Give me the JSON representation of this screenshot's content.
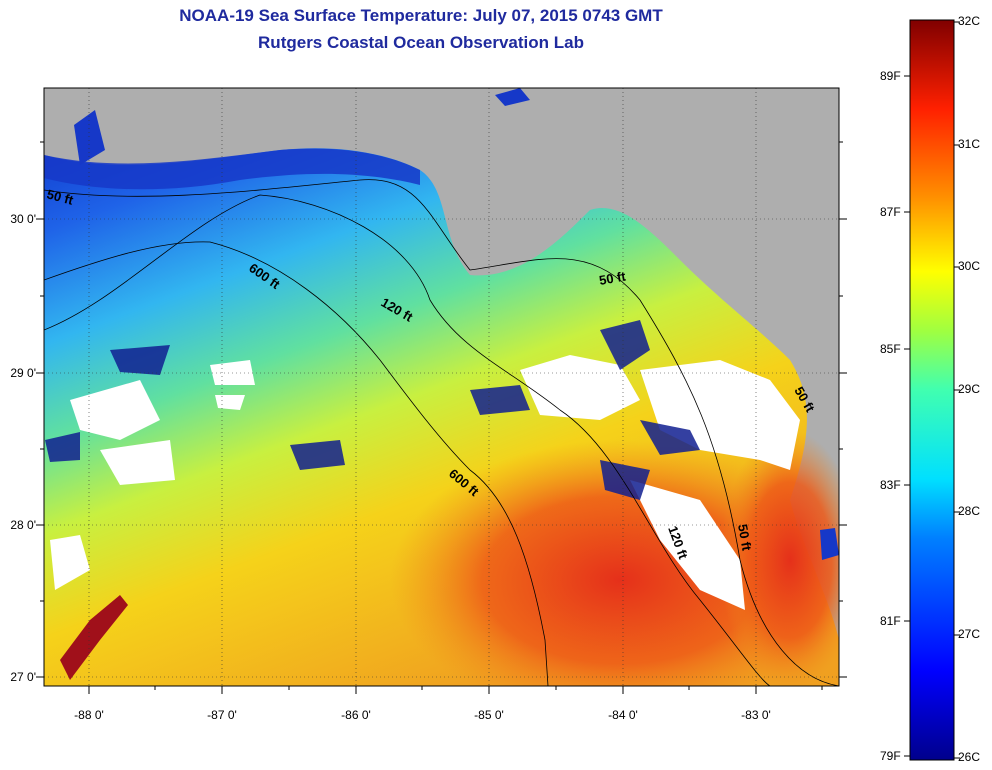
{
  "title": {
    "line1": "NOAA-19 Sea Surface Temperature:  July 07, 2015 0743 GMT",
    "line2": "Rutgers Coastal Ocean Observation Lab"
  },
  "latitude_labels": [
    "30 0'",
    "29 0'",
    "28 0'",
    "27 0'"
  ],
  "longitude_labels": [
    "-88 0'",
    "-87 0'",
    "-86 0'",
    "-85 0'",
    "-84 0'",
    "-83 0'"
  ],
  "contours": [
    "50 ft",
    "600 ft",
    "120 ft",
    "50 ft",
    "600 ft",
    "120 ft",
    "50 ft",
    "50 ft"
  ],
  "colorbar": {
    "celsius": [
      "32C",
      "31C",
      "30C",
      "29C",
      "28C",
      "27C",
      "26C"
    ],
    "fahrenheit": [
      "89F",
      "87F",
      "85F",
      "83F",
      "81F",
      "79F"
    ]
  },
  "colors": {
    "title": "#1f2a9e",
    "land": "#aeaeae",
    "cloud": "#ffffff",
    "warm": "#e8401a",
    "cool": "#1f63e8"
  }
}
